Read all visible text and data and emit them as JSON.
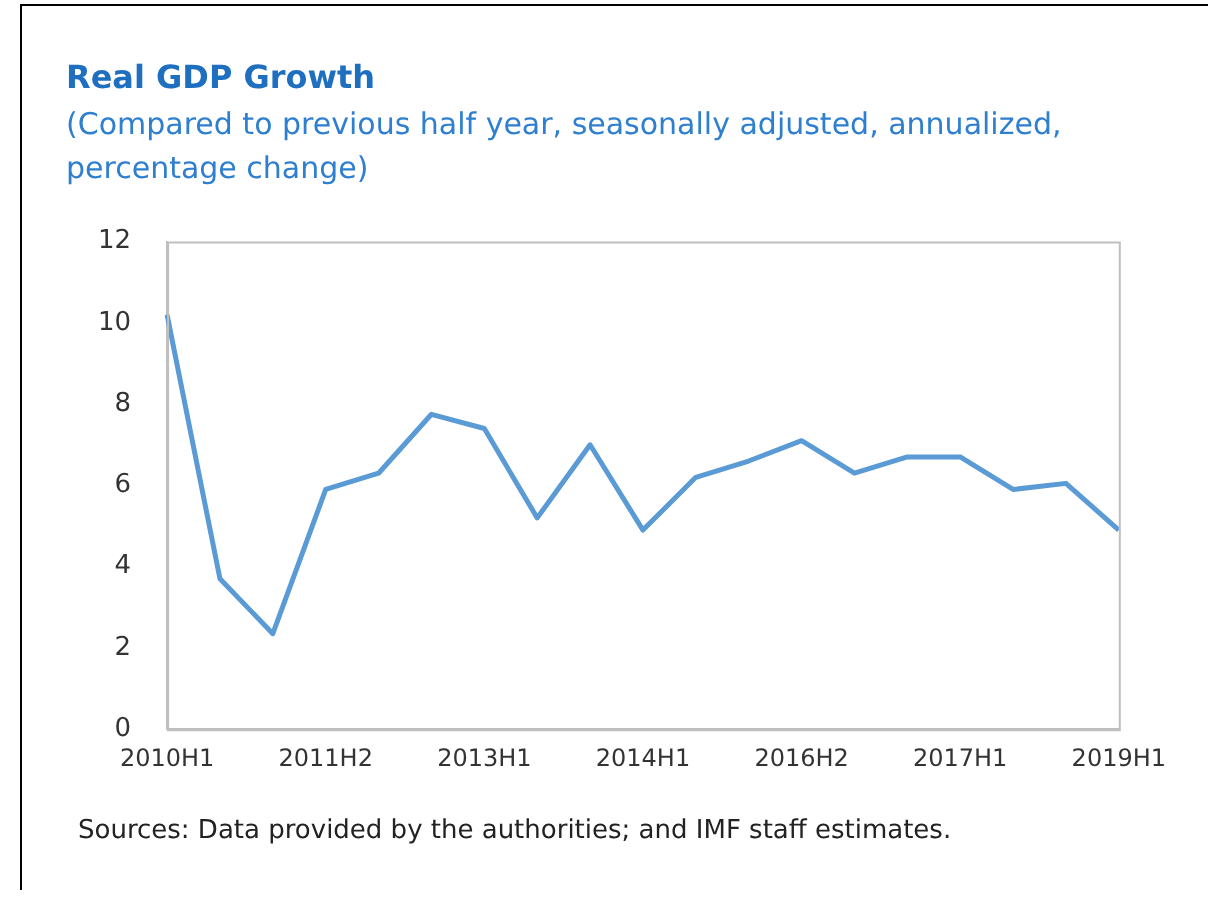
{
  "chart_data": {
    "type": "line",
    "title": "Real GDP Growth",
    "subtitle": "(Compared to previous half year, seasonally adjusted, annualized, percentage change)",
    "categories": [
      "2010H1",
      null,
      null,
      "2011H2",
      null,
      null,
      "2013H1",
      null,
      null,
      "2014H1",
      null,
      null,
      "2016H2",
      null,
      null,
      "2017H1",
      null,
      null,
      "2019H1"
    ],
    "series": [
      {
        "color": "#5b9bd5",
        "values": [
          10.2,
          3.7,
          2.35,
          5.9,
          6.3,
          7.75,
          7.4,
          5.2,
          7.0,
          4.9,
          6.2,
          6.6,
          7.1,
          6.3,
          6.7,
          6.7,
          5.9,
          6.05,
          4.9
        ]
      }
    ],
    "ylim": [
      0,
      12
    ],
    "yticks": [
      0,
      2,
      4,
      6,
      8,
      10,
      12
    ],
    "grid": false,
    "legend": false,
    "marker": "none",
    "line_style": "solid",
    "annotations": [
      "Sources: Data provided by the authorities; and IMF staff estimates."
    ]
  }
}
